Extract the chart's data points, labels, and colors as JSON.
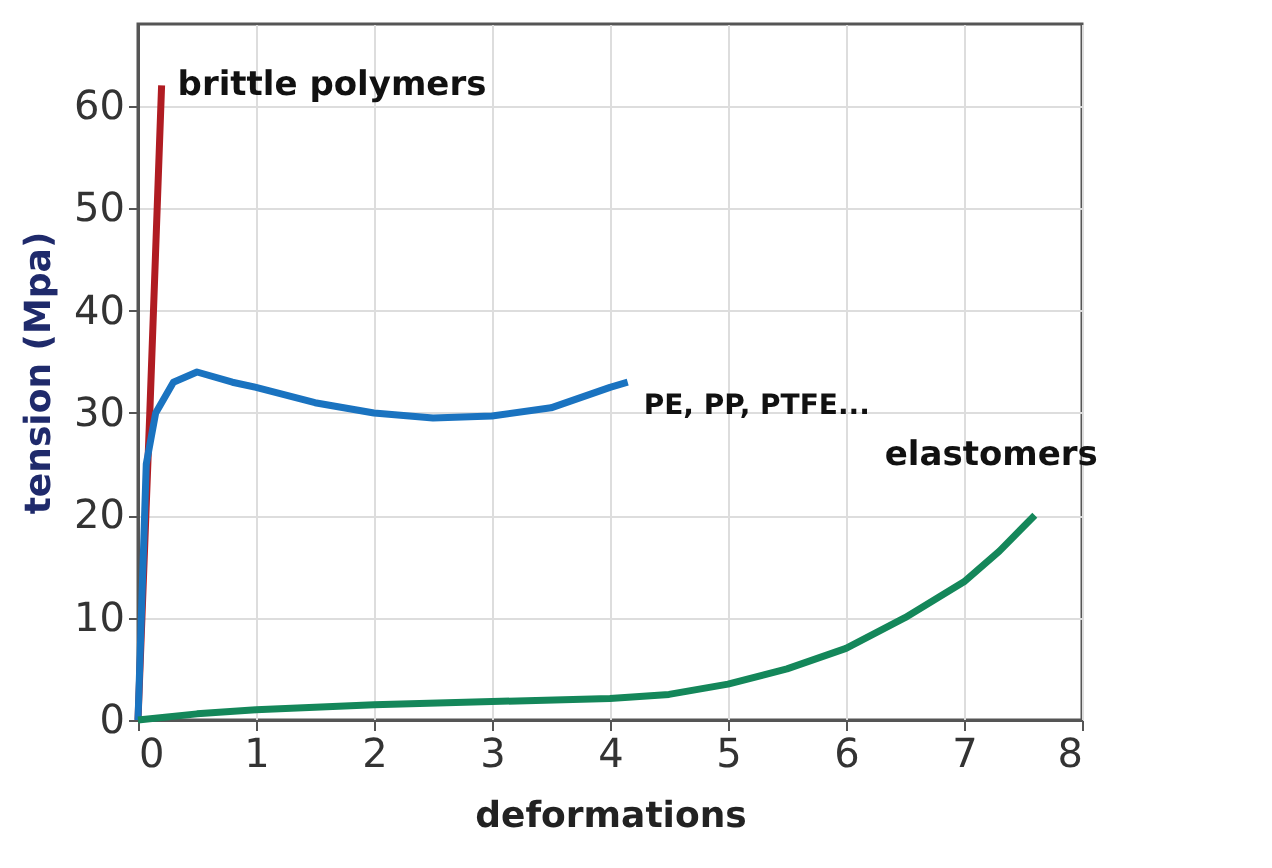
{
  "chart_data": {
    "type": "line",
    "xlabel": "deformations",
    "ylabel": "tension (Mpa)",
    "xlim": [
      0,
      8
    ],
    "xticks": [
      0,
      1,
      2,
      3,
      4,
      5,
      6,
      7,
      8
    ],
    "ylim": [
      0,
      68
    ],
    "yticks": [
      0,
      10,
      20,
      30,
      40,
      50,
      60
    ],
    "grid": true,
    "marker": "none",
    "line_style": "solid",
    "series": [
      {
        "name": "brittle polymers",
        "color": "#b01c22",
        "x": [
          0,
          0.1,
          0.2
        ],
        "values": [
          0,
          30,
          62
        ]
      },
      {
        "name": "PE, PP, PTFE...",
        "color": "#1a73c0",
        "x": [
          0,
          0.07,
          0.15,
          0.3,
          0.5,
          0.8,
          1,
          1.5,
          2,
          2.5,
          3,
          3.5,
          4,
          4.15
        ],
        "values": [
          0,
          25,
          30,
          33,
          34,
          33,
          32.5,
          31,
          30,
          29.5,
          29.7,
          30.5,
          32.5,
          33
        ]
      },
      {
        "name": "elastomers",
        "color": "#14875a",
        "x": [
          0,
          0.5,
          1,
          2,
          3,
          4,
          4.5,
          5,
          5.5,
          6,
          6.5,
          7,
          7.3,
          7.6
        ],
        "values": [
          0,
          0.6,
          1,
          1.5,
          1.8,
          2.1,
          2.5,
          3.5,
          5,
          7,
          10,
          13.5,
          16.5,
          20
        ]
      }
    ]
  }
}
